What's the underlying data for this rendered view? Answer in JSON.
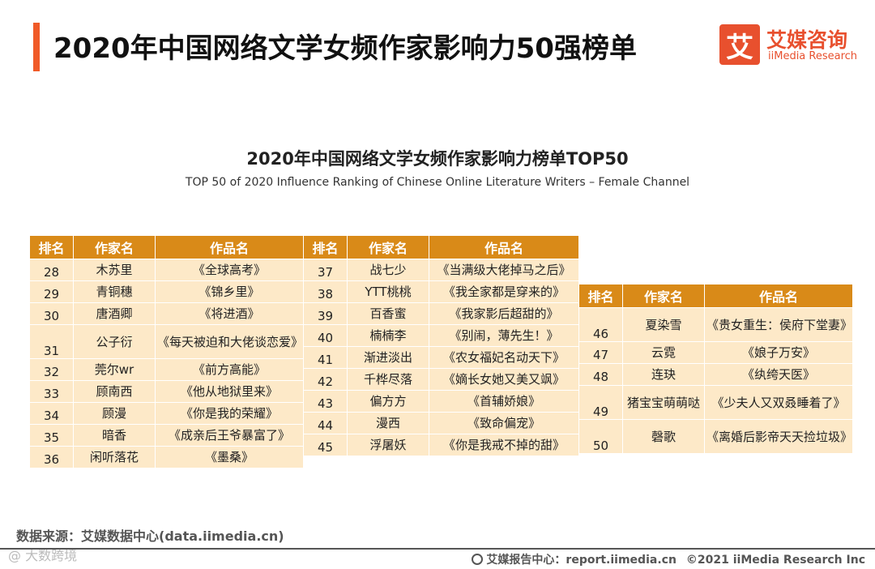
{
  "header": {
    "title": "2020年中国网络文学女频作家影响力50强榜单",
    "logo_mark": "艾",
    "logo_cn": "艾媒咨询",
    "logo_en": "iiMedia Research"
  },
  "chart": {
    "title": "2020年中国网络文学女频作家影响力榜单TOP50",
    "subtitle": "TOP 50 of 2020 Influence Ranking of Chinese Online Literature Writers – Female Channel"
  },
  "columns": {
    "rank": "排名",
    "writer": "作家名",
    "work": "作品名"
  },
  "tables": [
    {
      "rows": [
        {
          "rank": "28",
          "writer": "木苏里",
          "work": "《全球高考》"
        },
        {
          "rank": "29",
          "writer": "青铜穗",
          "work": "《锦乡里》"
        },
        {
          "rank": "30",
          "writer": "唐酒卿",
          "work": "《将进酒》"
        },
        {
          "rank": "31",
          "writer": "公子衍",
          "work": "《每天被迫和大佬谈恋爱》"
        },
        {
          "rank": "32",
          "writer": "莞尔wr",
          "work": "《前方高能》"
        },
        {
          "rank": "33",
          "writer": "顾南西",
          "work": "《他从地狱里来》"
        },
        {
          "rank": "34",
          "writer": "顾漫",
          "work": "《你是我的荣耀》"
        },
        {
          "rank": "35",
          "writer": "暗香",
          "work": "《成亲后王爷暴富了》"
        },
        {
          "rank": "36",
          "writer": "闲听落花",
          "work": "《墨桑》"
        }
      ]
    },
    {
      "rows": [
        {
          "rank": "37",
          "writer": "战七少",
          "work": "《当满级大佬掉马之后》"
        },
        {
          "rank": "38",
          "writer": "YTT桃桃",
          "work": "《我全家都是穿来的》"
        },
        {
          "rank": "39",
          "writer": "百香蜜",
          "work": "《我家影后超甜的》"
        },
        {
          "rank": "40",
          "writer": "楠楠李",
          "work": "《别闹，薄先生！》"
        },
        {
          "rank": "41",
          "writer": "渐进淡出",
          "work": "《农女福妃名动天下》"
        },
        {
          "rank": "42",
          "writer": "千桦尽落",
          "work": "《嫡长女她又美又飒》"
        },
        {
          "rank": "43",
          "writer": "偏方方",
          "work": "《首辅娇娘》"
        },
        {
          "rank": "44",
          "writer": "漫西",
          "work": "《致命偏宠》"
        },
        {
          "rank": "45",
          "writer": "浮屠妖",
          "work": "《你是我戒不掉的甜》"
        }
      ]
    },
    {
      "rows": [
        {
          "rank": "46",
          "writer": "夏染雪",
          "work": "《贵女重生：侯府下堂妻》"
        },
        {
          "rank": "47",
          "writer": "云霓",
          "work": "《娘子万安》"
        },
        {
          "rank": "48",
          "writer": "连玦",
          "work": "《纨绔天医》"
        },
        {
          "rank": "49",
          "writer": "猪宝宝萌萌哒",
          "work": "《少夫人又双叒睡着了》"
        },
        {
          "rank": "50",
          "writer": "磬歌",
          "work": "《离婚后影帝天天捡垃圾》"
        }
      ]
    }
  ],
  "footer": {
    "source": "数据来源：艾媒数据中心(data.iimedia.cn)",
    "watermark": "@ 大数跨境",
    "report_site": "艾媒报告中心：report.iimedia.cn",
    "copyright": "©2021  iiMedia Research  Inc"
  }
}
